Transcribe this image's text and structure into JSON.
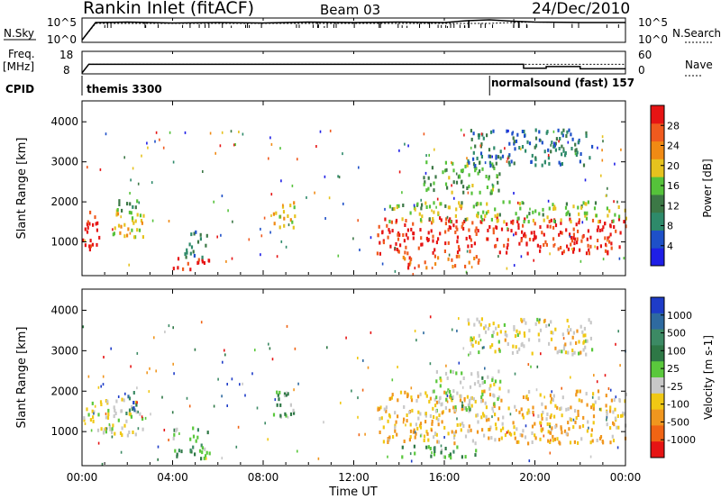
{
  "header": {
    "station": "Rankin Inlet (fitACF)",
    "beam": "Beam 03",
    "date": "24/Dec/2010"
  },
  "noise_panel": {
    "left_label": "N.Sky",
    "left_ticks": [
      "10^5",
      "10^0"
    ],
    "right_ticks": [
      "10^5",
      "10^0"
    ],
    "right_label": "N.Search"
  },
  "freq_panel": {
    "left_label_1": "Freq.",
    "left_label_2": "[MHz]",
    "left_ticks": [
      "18",
      "8"
    ],
    "right_ticks": [
      "60",
      "0"
    ],
    "right_label": "Nave"
  },
  "cpid": {
    "label": "CPID",
    "segments": [
      {
        "name": "themis 3300",
        "start_hour": 0
      },
      {
        "name": "normalsound (fast) 157",
        "start_hour": 18.0
      }
    ]
  },
  "x_axis": {
    "ticks": [
      "00:00",
      "04:00",
      "08:00",
      "12:00",
      "16:00",
      "20:00",
      "00:00"
    ],
    "label": "Time UT"
  },
  "colors": {
    "power": [
      "#1e1ee6",
      "#1e50c8",
      "#2e8a6a",
      "#3c7846",
      "#55c23a",
      "#e6c21e",
      "#f08a14",
      "#f05a1e",
      "#e61414"
    ],
    "velocity": [
      "#1e3cc8",
      "#2e6aa0",
      "#3c8a64",
      "#2e7846",
      "#5ac83c",
      "#c8c8c8",
      "#f0c814",
      "#f0961e",
      "#f06414",
      "#e61414"
    ]
  },
  "chart_data": [
    {
      "type": "line",
      "panel": "noise",
      "x": [
        0,
        0.6,
        2,
        4,
        6,
        8,
        10,
        12,
        14,
        16,
        17,
        18,
        19,
        20,
        22,
        24
      ],
      "series": [
        {
          "name": "N.Sky",
          "values": [
            0.3,
            4.2,
            4.3,
            4.1,
            4.2,
            4.1,
            4.3,
            4.2,
            4.3,
            4.2,
            4.6,
            4.8,
            4.5,
            4.3,
            4.2,
            4.2
          ]
        },
        {
          "name": "N.Search",
          "values": [
            0.3,
            4.0,
            4.0,
            4.0,
            4.0,
            4.0,
            4.0,
            4.0,
            4.0,
            4.0,
            4.0,
            4.0,
            4.2,
            4.3,
            4.2,
            4.2
          ]
        }
      ],
      "xlim": [
        0,
        24
      ],
      "ylim": [
        0,
        5
      ]
    },
    {
      "type": "line",
      "panel": "frequency",
      "x": [
        0,
        0.3,
        19.5,
        19.5,
        20.5,
        20.5,
        22,
        22,
        24
      ],
      "series": [
        {
          "name": "Freq.",
          "values": [
            8,
            12.2,
            12.2,
            10.3,
            10.3,
            11.1,
            11.1,
            10.0,
            10.0
          ]
        },
        {
          "name": "Nave",
          "values": [
            0,
            25,
            25,
            25,
            25,
            25,
            25,
            25,
            25
          ]
        }
      ],
      "xlim": [
        0,
        24
      ],
      "ylim": [
        8,
        18
      ]
    },
    {
      "type": "heatmap",
      "panel": "power",
      "ylabel": "Slant Range [km]",
      "xlim": [
        0,
        24
      ],
      "ylim": [
        180,
        4500
      ],
      "y_ticks": [
        "1000",
        "2000",
        "3000",
        "4000"
      ],
      "colorbar": {
        "label": "Power [dB]",
        "ticks": [
          "4",
          "8",
          "12",
          "16",
          "20",
          "24",
          "28"
        ],
        "range": [
          0,
          30
        ]
      },
      "regions": [
        {
          "t0": 0.0,
          "t1": 0.9,
          "r0": 800,
          "r1": 1750,
          "level": 28
        },
        {
          "t0": 1.0,
          "t1": 2.7,
          "r0": 1100,
          "r1": 1800,
          "level": 18
        },
        {
          "t0": 1.5,
          "t1": 2.4,
          "r0": 1700,
          "r1": 2100,
          "level": 12
        },
        {
          "t0": 4.0,
          "t1": 5.6,
          "r0": 300,
          "r1": 650,
          "level": 28
        },
        {
          "t0": 4.5,
          "t1": 5.5,
          "r0": 600,
          "r1": 1300,
          "level": 10
        },
        {
          "t0": 8.4,
          "t1": 9.4,
          "r0": 1300,
          "r1": 2000,
          "level": 18
        },
        {
          "t0": 13.0,
          "t1": 24.0,
          "r0": 700,
          "r1": 1600,
          "level": 28
        },
        {
          "t0": 13.5,
          "t1": 24.0,
          "r0": 1500,
          "r1": 2000,
          "level": 16
        },
        {
          "t0": 14.0,
          "t1": 17.5,
          "r0": 350,
          "r1": 650,
          "level": 24
        },
        {
          "t0": 15.0,
          "t1": 18.5,
          "r0": 2200,
          "r1": 3000,
          "level": 14
        },
        {
          "t0": 17.0,
          "t1": 22.5,
          "r0": 2900,
          "r1": 3800,
          "level": 8
        }
      ]
    },
    {
      "type": "heatmap",
      "panel": "velocity",
      "ylabel": "Slant Range [km]",
      "xlim": [
        0,
        24
      ],
      "ylim": [
        180,
        4500
      ],
      "y_ticks": [
        "1000",
        "2000",
        "3000",
        "4000"
      ],
      "colorbar": {
        "label": "Velocity [m s-1]",
        "ticks": [
          "1000",
          "500",
          "100",
          "25",
          "-25",
          "-100",
          "-500",
          "-1000"
        ],
        "range": [
          -1000,
          1000
        ]
      },
      "regions": [
        {
          "t0": 0.0,
          "t1": 2.7,
          "r0": 900,
          "r1": 1800,
          "level": -150
        },
        {
          "t0": 1.8,
          "t1": 2.4,
          "r0": 1300,
          "r1": 2000,
          "level": 600
        },
        {
          "t0": 4.0,
          "t1": 5.6,
          "r0": 300,
          "r1": 1100,
          "level": 200
        },
        {
          "t0": 8.4,
          "t1": 9.4,
          "r0": 1300,
          "r1": 2000,
          "level": 150
        },
        {
          "t0": 13.0,
          "t1": 24.0,
          "r0": 700,
          "r1": 2000,
          "level": -350
        },
        {
          "t0": 15.5,
          "t1": 18.5,
          "r0": 1500,
          "r1": 2500,
          "level": 0
        },
        {
          "t0": 14.0,
          "t1": 17.5,
          "r0": 350,
          "r1": 650,
          "level": 200
        },
        {
          "t0": 17.0,
          "t1": 22.5,
          "r0": 2900,
          "r1": 3800,
          "level": -200
        }
      ]
    }
  ]
}
